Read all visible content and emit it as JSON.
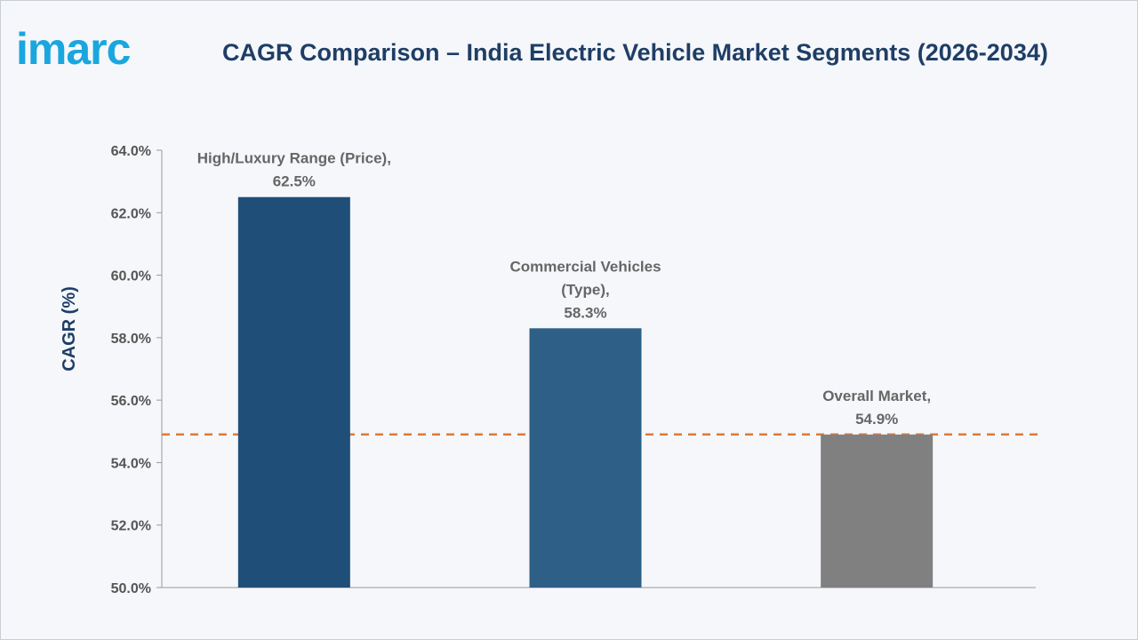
{
  "brand": {
    "logo_text": "imarc"
  },
  "chart_data": {
    "type": "bar",
    "title": "CAGR Comparison – India Electric Vehicle Market Segments (2026-2034)",
    "xlabel": "",
    "ylabel": "CAGR (%)",
    "ylim": [
      50,
      64
    ],
    "y_ticks": [
      "50.0%",
      "52.0%",
      "54.0%",
      "56.0%",
      "58.0%",
      "60.0%",
      "62.0%",
      "64.0%"
    ],
    "categories": [
      "High/Luxury Range (Price)",
      "Commercial Vehicles (Type)",
      "Overall Market"
    ],
    "values": [
      62.5,
      58.3,
      54.9
    ],
    "data_labels": [
      [
        "High/Luxury Range (Price),",
        "62.5%"
      ],
      [
        "Commercial Vehicles",
        "(Type),",
        "58.3%"
      ],
      [
        "Overall Market,",
        "54.9%"
      ]
    ],
    "bar_colors": [
      "#1f4e79",
      "#2e5f87",
      "#808080"
    ],
    "reference_line": {
      "value": 54.9,
      "color": "#e0793a",
      "style": "dashed"
    },
    "grid": false,
    "legend": "none"
  }
}
